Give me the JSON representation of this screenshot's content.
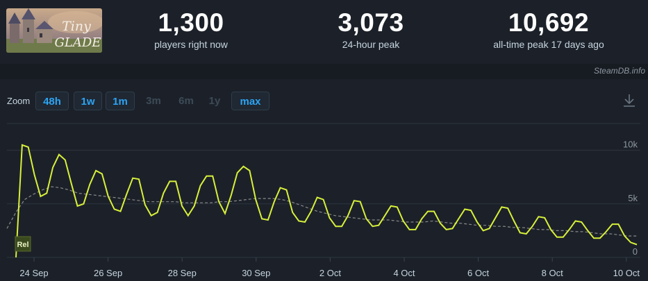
{
  "game": {
    "logo_text": "Tiny Glade"
  },
  "stats": {
    "now": {
      "value": "1,300",
      "label": "players right now"
    },
    "peak24": {
      "value": "3,073",
      "label": "24-hour peak"
    },
    "alltime": {
      "value": "10,692",
      "label": "all-time peak 17 days ago"
    }
  },
  "credit": "SteamDB.info",
  "zoom": {
    "label": "Zoom",
    "buttons": [
      {
        "label": "48h",
        "enabled": true
      },
      {
        "label": "1w",
        "enabled": true
      },
      {
        "label": "1m",
        "enabled": true
      },
      {
        "label": "3m",
        "enabled": false
      },
      {
        "label": "6m",
        "enabled": false
      },
      {
        "label": "1y",
        "enabled": false
      },
      {
        "label": "max",
        "enabled": true
      }
    ]
  },
  "download_icon": "download-icon",
  "colors": {
    "line": "#d8f03a",
    "avg": "#8a8a8a",
    "accent": "#2ea3f2"
  },
  "chart_data": {
    "type": "line",
    "xlabels": [
      "24 Sep",
      "26 Sep",
      "28 Sep",
      "30 Sep",
      "2 Oct",
      "4 Oct",
      "6 Oct",
      "8 Oct",
      "10 Oct"
    ],
    "ylabels": [
      "10k",
      "5k",
      "0"
    ],
    "ylim": [
      0,
      12500
    ],
    "marker_label": "Rel",
    "series": [
      {
        "name": "players",
        "values": [
          0,
          10500,
          10300,
          7700,
          5700,
          6000,
          8400,
          9600,
          9100,
          6900,
          4800,
          5000,
          6800,
          8100,
          7800,
          5700,
          4500,
          4300,
          5900,
          7400,
          7300,
          4900,
          3900,
          4200,
          6000,
          7100,
          7100,
          4800,
          3900,
          4800,
          6700,
          7600,
          7600,
          5200,
          4100,
          5800,
          7900,
          8500,
          8100,
          5400,
          3600,
          3500,
          5200,
          6500,
          6300,
          4200,
          3400,
          3300,
          4300,
          5600,
          5400,
          3700,
          2900,
          2900,
          3900,
          5300,
          5200,
          3600,
          2900,
          3000,
          3900,
          4800,
          4700,
          3400,
          2600,
          2600,
          3600,
          4300,
          4300,
          3200,
          2600,
          2700,
          3600,
          4500,
          4400,
          3300,
          2500,
          2700,
          3700,
          4700,
          4600,
          3400,
          2300,
          2200,
          2900,
          3800,
          3700,
          2600,
          1900,
          1900,
          2600,
          3400,
          3300,
          2500,
          1800,
          1800,
          2400,
          3100,
          3100,
          2000,
          1400,
          1200
        ],
        "start_index": 1
      },
      {
        "name": "average",
        "values": [
          2700,
          4200,
          5400,
          5900,
          6300,
          6600,
          6500,
          6300,
          6000,
          5900,
          5800,
          5700,
          5600,
          5500,
          5400,
          5300,
          5200,
          5200,
          5200,
          5200,
          5100,
          5100,
          5100,
          5100,
          5200,
          5200,
          5300,
          5400,
          5500,
          5500,
          5500,
          5400,
          5200,
          4900,
          4600,
          4300,
          4100,
          3900,
          3800,
          3700,
          3600,
          3500,
          3500,
          3500,
          3400,
          3300,
          3300,
          3300,
          3400,
          3300,
          3200,
          3200,
          3100,
          3000,
          3000,
          2900,
          2900,
          2800,
          2800,
          2700,
          2600,
          2600,
          2500,
          2500,
          2400,
          2400,
          2300,
          2200,
          2200,
          2100,
          2000,
          2000
        ]
      }
    ]
  }
}
